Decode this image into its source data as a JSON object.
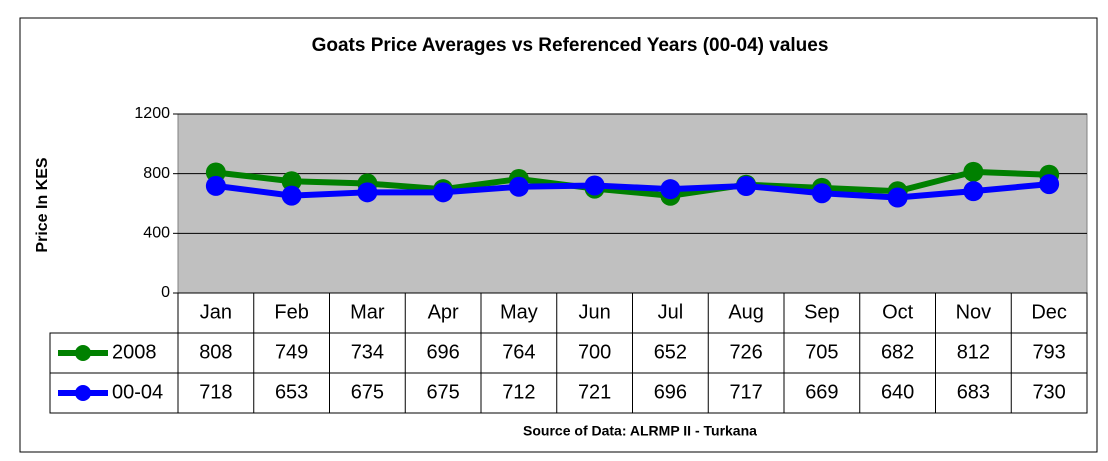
{
  "chart_data": {
    "type": "line",
    "title": "Goats Price Averages vs Referenced Years (00-04) values",
    "y_label": "Price In KES",
    "source": "Source of Data: ALRMP II - Turkana",
    "categories": [
      "Jan",
      "Feb",
      "Mar",
      "Apr",
      "May",
      "Jun",
      "Jul",
      "Aug",
      "Sep",
      "Oct",
      "Nov",
      "Dec"
    ],
    "series": [
      {
        "name": "2008",
        "color": "#008000",
        "values": [
          808,
          749,
          734,
          696,
          764,
          700,
          652,
          726,
          705,
          682,
          812,
          793
        ]
      },
      {
        "name": "00-04",
        "color": "#0000ff",
        "values": [
          718,
          653,
          675,
          675,
          712,
          721,
          696,
          717,
          669,
          640,
          683,
          730
        ]
      }
    ],
    "ylim": [
      0,
      1200
    ],
    "yticks": [
      0,
      400,
      800,
      1200
    ],
    "grid": true,
    "plot_background": "#c0c0c0"
  }
}
